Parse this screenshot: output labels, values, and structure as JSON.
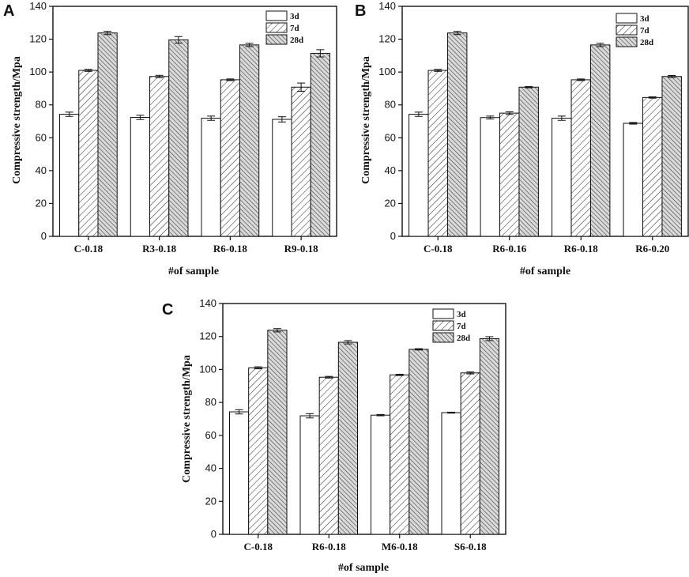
{
  "chart_data": [
    {
      "type": "bar",
      "panel_label": "A",
      "categories": [
        "C-0.18",
        "R3-0.18",
        "R6-0.18",
        "R9-0.18"
      ],
      "series": [
        {
          "name": "3d",
          "values": [
            74.3,
            72.4,
            71.9,
            71.2
          ],
          "errors": [
            1.3,
            1.3,
            1.3,
            1.6
          ]
        },
        {
          "name": "7d",
          "values": [
            101.0,
            97.3,
            95.3,
            90.8
          ],
          "errors": [
            0.6,
            0.7,
            0.5,
            2.5
          ]
        },
        {
          "name": "28d",
          "values": [
            123.8,
            119.6,
            116.5,
            111.4
          ],
          "errors": [
            1.0,
            2.0,
            1.0,
            2.2
          ]
        }
      ],
      "xlabel": "#of sample",
      "ylabel": "Compressive strength/Mpa",
      "ylim": [
        0,
        140
      ],
      "yticks": [
        0,
        20,
        40,
        60,
        80,
        100,
        120,
        140
      ],
      "legend": "top-right"
    },
    {
      "type": "bar",
      "panel_label": "B",
      "categories": [
        "C-0.18",
        "R6-0.16",
        "R6-0.18",
        "R6-0.20"
      ],
      "series": [
        {
          "name": "3d",
          "values": [
            74.3,
            72.3,
            71.9,
            68.8
          ],
          "errors": [
            1.3,
            0.9,
            1.3,
            0.5
          ]
        },
        {
          "name": "7d",
          "values": [
            101.0,
            75.0,
            95.3,
            84.5
          ],
          "errors": [
            0.6,
            0.8,
            0.5,
            0.4
          ]
        },
        {
          "name": "28d",
          "values": [
            123.8,
            90.8,
            116.5,
            97.3
          ],
          "errors": [
            1.0,
            0.4,
            1.0,
            0.6
          ]
        }
      ],
      "xlabel": "#of sample",
      "ylabel": "Compressive strength/Mpa",
      "ylim": [
        0,
        140
      ],
      "yticks": [
        0,
        20,
        40,
        60,
        80,
        100,
        120,
        140
      ],
      "legend": "top-right"
    },
    {
      "type": "bar",
      "panel_label": "C",
      "categories": [
        "C-0.18",
        "R6-0.18",
        "M6-0.18",
        "S6-0.18"
      ],
      "series": [
        {
          "name": "3d",
          "values": [
            74.3,
            71.9,
            72.3,
            73.8
          ],
          "errors": [
            1.3,
            1.3,
            0.4,
            0.3
          ]
        },
        {
          "name": "7d",
          "values": [
            101.0,
            95.3,
            96.7,
            97.9
          ],
          "errors": [
            0.6,
            0.5,
            0.4,
            0.6
          ]
        },
        {
          "name": "28d",
          "values": [
            123.8,
            116.5,
            112.2,
            118.7
          ],
          "errors": [
            1.0,
            1.0,
            0.4,
            1.2
          ]
        }
      ],
      "xlabel": "#of sample",
      "ylabel": "Compressive strength/Mpa",
      "ylim": [
        0,
        140
      ],
      "yticks": [
        0,
        20,
        40,
        60,
        80,
        100,
        120,
        140
      ],
      "legend": "top-right"
    }
  ],
  "colors": {
    "axis": "#111111",
    "fill_3d": "#ffffff",
    "fill_7d_bg": "#ffffff",
    "fill_28d_bg": "#d9d9d9",
    "hatch": "#222222"
  },
  "icons": {
    "pattern_7d": "diagonal-hatch-light",
    "pattern_28d": "diagonal-hatch-dense-gray"
  }
}
